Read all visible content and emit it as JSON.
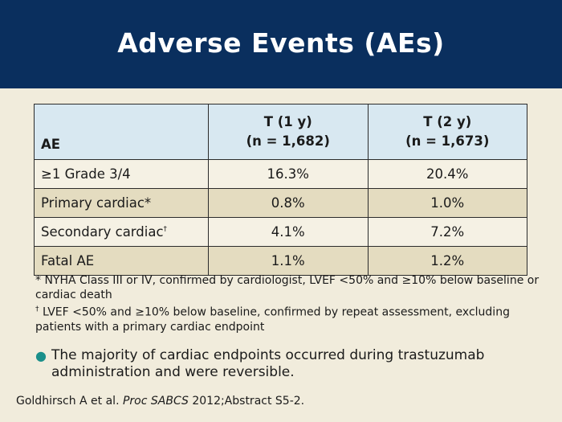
{
  "header": {
    "title": "Adverse Events (AEs)"
  },
  "colors": {
    "header_bg": "#0a2f5e",
    "table_head_bg": "#d8e8f1",
    "row_shade": "#e4dcc0",
    "bullet": "#1a8f8a"
  },
  "table": {
    "headers": {
      "ae": "AE",
      "col1_line1": "T (1 y)",
      "col1_line2": "(n = 1,682)",
      "col2_line1": "T (2 y)",
      "col2_line2": "(n = 1,673)"
    },
    "rows": [
      {
        "label": "≥1 Grade 3/4",
        "sup": "",
        "v1": "16.3%",
        "v2": "20.4%"
      },
      {
        "label": "Primary cardiac*",
        "sup": "",
        "v1": "0.8%",
        "v2": "1.0%"
      },
      {
        "label": "Secondary cardiac",
        "sup": "†",
        "v1": "4.1%",
        "v2": "7.2%"
      },
      {
        "label": "Fatal AE",
        "sup": "",
        "v1": "1.1%",
        "v2": "1.2%"
      }
    ]
  },
  "footnotes": {
    "star": "* NYHA Class III or IV, confirmed by cardiologist, LVEF <50% and ≥10% below baseline or cardiac death",
    "dagger_mark": "†",
    "dagger": " LVEF <50% and ≥10% below baseline, confirmed by repeat assessment, excluding patients with a primary cardiac endpoint"
  },
  "bullet": {
    "icon": "bullet-dot-icon",
    "text": "The majority of cardiac endpoints occurred during trastuzumab administration and were reversible."
  },
  "citation": {
    "authors": "Goldhirsch A et al. ",
    "journal": "Proc SABCS",
    "rest": " 2012;Abstract S5-2."
  }
}
